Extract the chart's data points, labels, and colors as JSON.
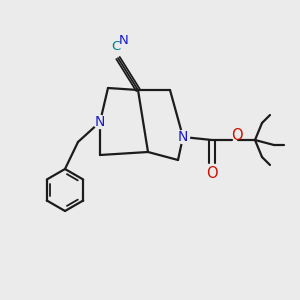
{
  "background_color": "#ebebeb",
  "bond_color": "#1c1c1c",
  "N_color": "#1a1acc",
  "O_color": "#cc1100",
  "CN_color": "#008080",
  "figsize": [
    3.0,
    3.0
  ],
  "dpi": 100,
  "xlim": [
    0,
    300
  ],
  "ylim": [
    0,
    300
  ]
}
